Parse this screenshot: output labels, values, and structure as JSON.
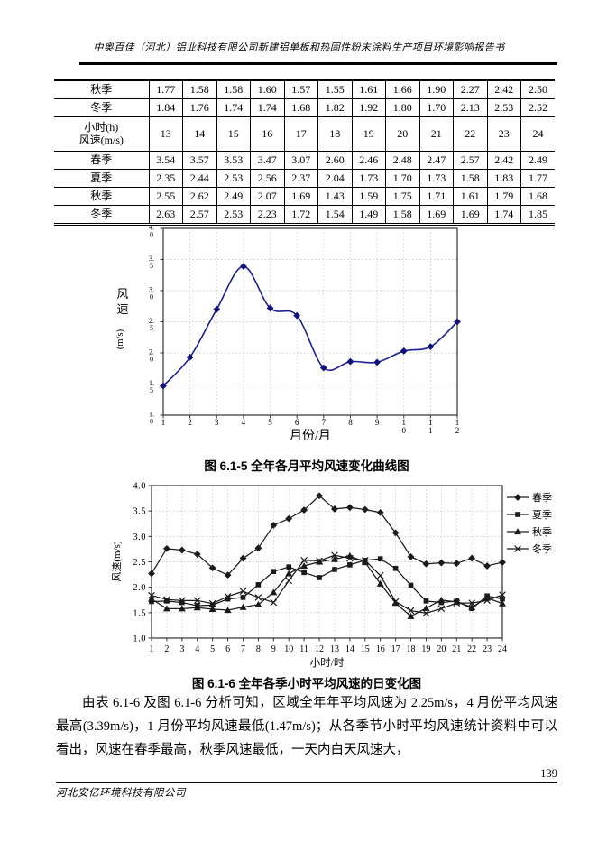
{
  "page": {
    "header_title": "中奥百佳（河北）铝业科技有限公司新建铝单板和热固性粉末涂料生产项目环境影响报告书",
    "footer_company": "河北安亿环境科技有限公司",
    "page_number": "139"
  },
  "table": {
    "rows": [
      {
        "cells": [
          "秋季",
          "1.77",
          "1.58",
          "1.58",
          "1.60",
          "1.57",
          "1.55",
          "1.61",
          "1.66",
          "1.90",
          "2.27",
          "2.42",
          "2.50"
        ]
      },
      {
        "cells": [
          "冬季",
          "1.84",
          "1.76",
          "1.74",
          "1.74",
          "1.68",
          "1.82",
          "1.92",
          "1.80",
          "1.70",
          "2.13",
          "2.53",
          "2.52"
        ]
      },
      {
        "cells": [
          "小时(h)\n风速(m/s)",
          "13",
          "14",
          "15",
          "16",
          "17",
          "18",
          "19",
          "20",
          "21",
          "22",
          "23",
          "24"
        ],
        "is_header": true
      },
      {
        "cells": [
          "春季",
          "3.54",
          "3.57",
          "3.53",
          "3.47",
          "3.07",
          "2.60",
          "2.46",
          "2.48",
          "2.47",
          "2.57",
          "2.42",
          "2.49"
        ]
      },
      {
        "cells": [
          "夏季",
          "2.35",
          "2.44",
          "2.53",
          "2.56",
          "2.37",
          "2.04",
          "1.73",
          "1.70",
          "1.73",
          "1.58",
          "1.83",
          "1.77"
        ]
      },
      {
        "cells": [
          "秋季",
          "2.55",
          "2.62",
          "2.49",
          "2.07",
          "1.69",
          "1.43",
          "1.59",
          "1.75",
          "1.71",
          "1.61",
          "1.79",
          "1.68"
        ]
      },
      {
        "cells": [
          "冬季",
          "2.63",
          "2.57",
          "2.53",
          "2.23",
          "1.72",
          "1.54",
          "1.49",
          "1.58",
          "1.69",
          "1.69",
          "1.74",
          "1.85"
        ]
      }
    ]
  },
  "figure1": {
    "caption": "图 6.1-5  全年各月平均风速变化曲线图"
  },
  "figure2": {
    "caption": "图 6.1-6  全年各季小时平均风速的日变化图"
  },
  "paragraph": "由表 6.1-6 及图 6.1-6 分析可知，区域全年年平均风速为 2.25m/s，4 月份平均风速最高(3.39m/s)，1 月份平均风速最低(1.47m/s)；从各季节小时平均风速统计资料中可以看出，风速在春季最高，秋季风速最低，一天内白天风速大，",
  "chart_data": [
    {
      "type": "line",
      "title": "全年各月平均风速变化曲线图",
      "x": [
        1,
        2,
        3,
        4,
        5,
        6,
        7,
        8,
        9,
        10,
        11,
        12
      ],
      "series": [
        {
          "name": "月平均风速",
          "marker": "diamond",
          "values": [
            1.47,
            1.93,
            2.7,
            3.39,
            2.72,
            2.6,
            1.76,
            1.86,
            1.85,
            2.03,
            2.1,
            2.5
          ]
        }
      ],
      "xlabel": "月份/月",
      "ylabel": "风速(m/s)",
      "ylim": [
        1.0,
        4.0
      ],
      "ytick_step": 0.5,
      "grid": true,
      "smooth": true,
      "line_color": "#1f1f93",
      "marker_color": "#10107e"
    },
    {
      "type": "line",
      "title": "全年各季小时平均风速的日变化图",
      "x": [
        1,
        2,
        3,
        4,
        5,
        6,
        7,
        8,
        9,
        10,
        11,
        12,
        13,
        14,
        15,
        16,
        17,
        18,
        19,
        20,
        21,
        22,
        23,
        24
      ],
      "series": [
        {
          "name": "春季",
          "marker": "diamond",
          "values": [
            2.27,
            2.76,
            2.73,
            2.65,
            2.38,
            2.24,
            2.57,
            2.77,
            3.22,
            3.35,
            3.52,
            3.8,
            3.54,
            3.57,
            3.53,
            3.47,
            3.07,
            2.6,
            2.46,
            2.48,
            2.47,
            2.57,
            2.42,
            2.49
          ]
        },
        {
          "name": "夏季",
          "marker": "square",
          "values": [
            1.72,
            1.73,
            1.7,
            1.64,
            1.65,
            1.77,
            1.8,
            2.05,
            2.31,
            2.4,
            2.29,
            2.19,
            2.35,
            2.44,
            2.53,
            2.56,
            2.37,
            2.04,
            1.73,
            1.7,
            1.73,
            1.58,
            1.83,
            1.77
          ]
        },
        {
          "name": "秋季",
          "marker": "triangle",
          "values": [
            1.77,
            1.58,
            1.58,
            1.6,
            1.57,
            1.55,
            1.61,
            1.66,
            1.9,
            2.27,
            2.42,
            2.5,
            2.55,
            2.62,
            2.49,
            2.07,
            1.69,
            1.43,
            1.59,
            1.75,
            1.71,
            1.61,
            1.79,
            1.68
          ]
        },
        {
          "name": "冬季",
          "marker": "x",
          "values": [
            1.84,
            1.76,
            1.74,
            1.74,
            1.68,
            1.82,
            1.92,
            1.8,
            1.7,
            2.13,
            2.53,
            2.52,
            2.63,
            2.57,
            2.53,
            2.23,
            1.72,
            1.54,
            1.49,
            1.58,
            1.69,
            1.69,
            1.74,
            1.85
          ]
        }
      ],
      "xlabel": "小时/时",
      "ylabel": "风速(m/s)",
      "ylim": [
        1.0,
        4.0
      ],
      "ytick_step": 0.5,
      "grid": true,
      "smooth": false,
      "line_color": "#1a1a1a",
      "legend_position": "right"
    }
  ]
}
